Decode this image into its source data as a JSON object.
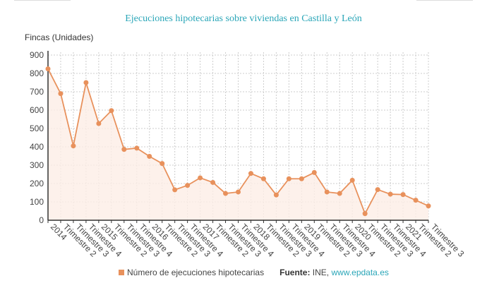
{
  "chart_data": {
    "type": "area",
    "title": "Ejecuciones hipotecarias sobre viviendas en Castilla y León",
    "ylabel": "Fincas (Unidades)",
    "xlabel": "",
    "ylim": [
      0,
      900
    ],
    "yticks": [
      0,
      100,
      200,
      300,
      400,
      500,
      600,
      700,
      800,
      900
    ],
    "grid": true,
    "legend_position": "bottom",
    "color": "#e8915c",
    "categories": [
      "2014",
      "Trimestre 2",
      "Trimestre 3",
      "Trimestre 4",
      "2015",
      "Trimestre 2",
      "Trimestre 3",
      "Trimestre 4",
      "2016",
      "Trimestre 2",
      "Trimestre 3",
      "Trimestre 4",
      "2017",
      "Trimestre 2",
      "Trimestre 3",
      "Trimestre 4",
      "2018",
      "Trimestre 2",
      "Trimestre 3",
      "Trimestre 4",
      "2019",
      "Trimestre 2",
      "Trimestre 3",
      "Trimestre 4",
      "2020",
      "Trimestre 2",
      "Trimestre 3",
      "Trimestre 4",
      "2021",
      "Trimestre 2",
      "Trimestre 3"
    ],
    "series": [
      {
        "name": "Número de ejecuciones hipotecarias",
        "values": [
          825,
          690,
          405,
          750,
          527,
          597,
          386,
          393,
          348,
          309,
          166,
          190,
          231,
          206,
          146,
          154,
          255,
          226,
          138,
          226,
          226,
          260,
          154,
          146,
          218,
          36,
          167,
          142,
          140,
          109,
          78
        ]
      }
    ]
  },
  "source": {
    "label": "Fuente:",
    "text": "INE,",
    "link": "www.epdata.es"
  }
}
